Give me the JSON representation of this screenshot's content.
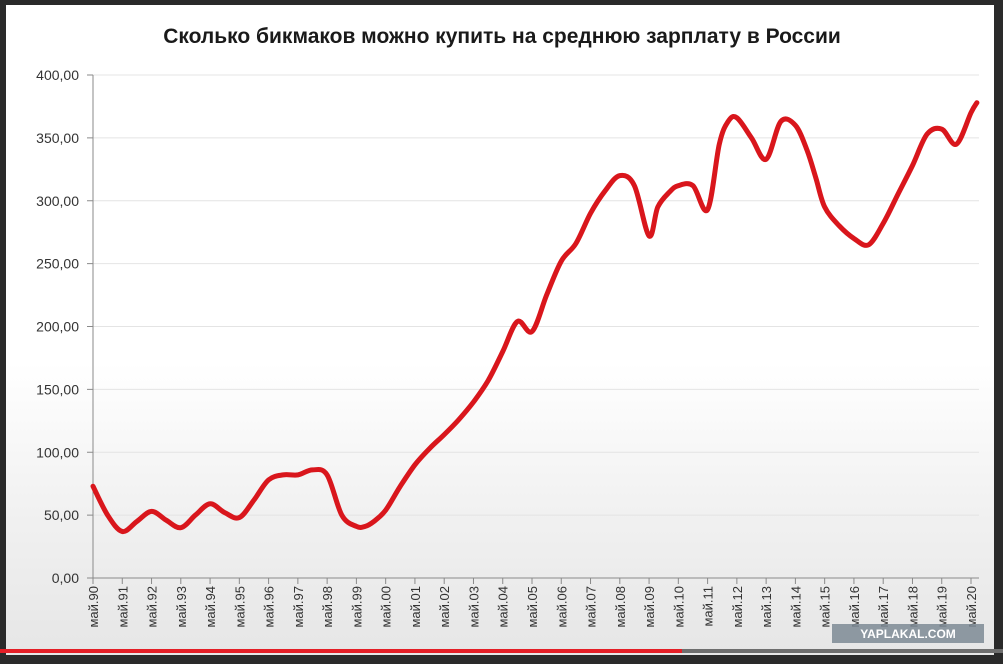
{
  "chart_data": {
    "type": "line",
    "title": "Сколько бикмаков можно купить на среднюю зарплату в России",
    "xlabel": "",
    "ylabel": "",
    "ylim": [
      0,
      400
    ],
    "yticks": [
      "0,00",
      "50,00",
      "100,00",
      "150,00",
      "200,00",
      "250,00",
      "300,00",
      "350,00",
      "400,00"
    ],
    "categories": [
      "май.90",
      "май.91",
      "май.92",
      "май.93",
      "май.94",
      "май.95",
      "май.96",
      "май.97",
      "май.98",
      "май.99",
      "май.00",
      "май.01",
      "май.02",
      "май.03",
      "май.04",
      "май.05",
      "май.06",
      "май.07",
      "май.08",
      "май.09",
      "май.10",
      "май.11",
      "май.12",
      "май.13",
      "май.14",
      "май.15",
      "май.16",
      "май.17",
      "май.18",
      "май.19",
      "май.20"
    ],
    "series": [
      {
        "color": "#d9161c",
        "x": [
          0,
          0.5,
          1,
          1.5,
          2,
          2.5,
          3,
          3.5,
          4,
          4.5,
          5,
          5.5,
          6,
          6.5,
          7,
          7.5,
          8,
          8.5,
          9,
          9.3,
          9.6,
          10,
          10.5,
          11,
          11.5,
          12,
          12.5,
          13,
          13.5,
          14,
          14.5,
          15,
          15.5,
          16,
          16.5,
          17,
          17.5,
          18,
          18.5,
          19,
          19.3,
          19.7,
          20,
          20.5,
          21,
          21.4,
          21.7,
          22,
          22.5,
          23,
          23.5,
          24,
          24.4,
          24.7,
          25,
          25.5,
          26,
          26.5,
          27,
          27.5,
          28,
          28.5,
          29,
          29.5,
          30,
          30.2
        ],
        "values": [
          73,
          50,
          37,
          45,
          53,
          46,
          40,
          50,
          59,
          52,
          48,
          62,
          78,
          82,
          82,
          86,
          82,
          50,
          41,
          41,
          45,
          54,
          73,
          90,
          103,
          114,
          126,
          140,
          157,
          180,
          204,
          196,
          225,
          252,
          266,
          290,
          308,
          320,
          312,
          272,
          295,
          307,
          312,
          312,
          293,
          345,
          363,
          366,
          350,
          333,
          363,
          360,
          340,
          318,
          295,
          280,
          270,
          265,
          282,
          305,
          328,
          353,
          357,
          345,
          370,
          378
        ]
      }
    ],
    "legend": "none",
    "grid": true,
    "watermark": "YAPLAKAL.COM",
    "video_progress_fraction": 0.68
  }
}
